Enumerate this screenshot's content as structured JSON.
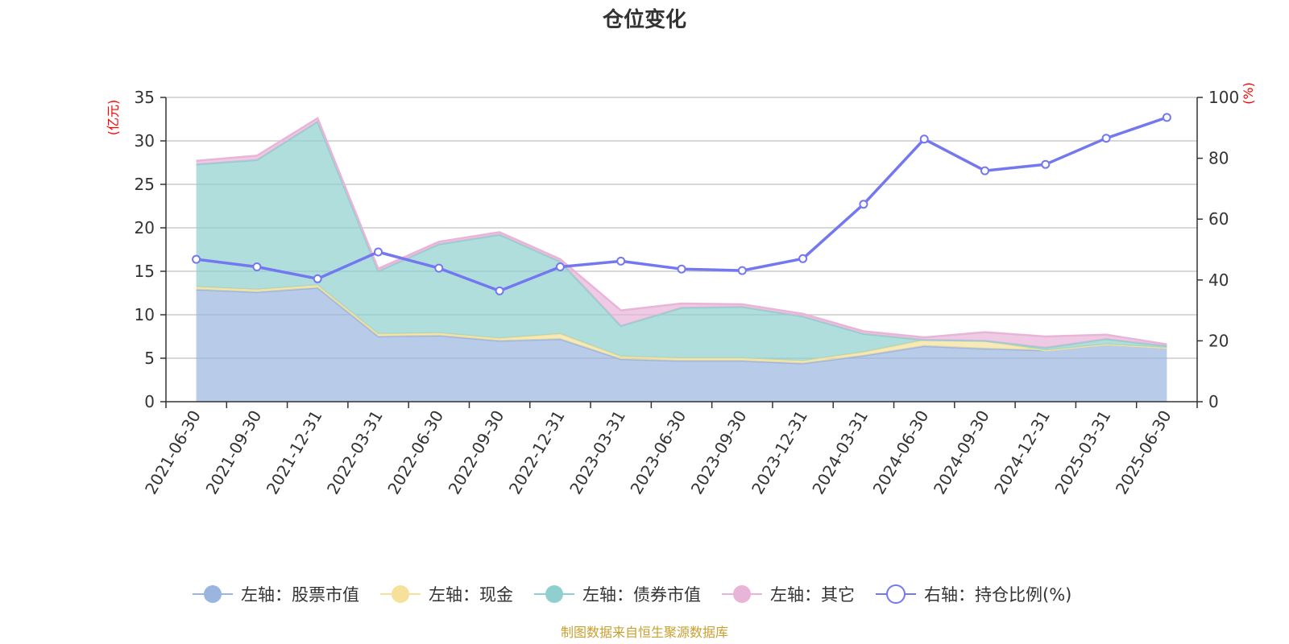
{
  "chart_data": {
    "type": "area",
    "title": "仓位变化",
    "left_axis_unit": "(亿元)",
    "right_axis_unit": "(%)",
    "left_ylim": [
      0,
      35
    ],
    "left_ticks": [
      0,
      5,
      10,
      15,
      20,
      25,
      30,
      35
    ],
    "right_ylim": [
      0,
      100
    ],
    "right_ticks": [
      0,
      20,
      40,
      60,
      80,
      100
    ],
    "grid": true,
    "legend_position": "bottom",
    "categories": [
      "2021-06-30",
      "2021-09-30",
      "2021-12-31",
      "2022-03-31",
      "2022-06-30",
      "2022-09-30",
      "2022-12-31",
      "2023-03-31",
      "2023-06-30",
      "2023-09-30",
      "2023-12-31",
      "2024-03-31",
      "2024-06-30",
      "2024-09-30",
      "2024-12-31",
      "2025-03-31",
      "2025-06-30"
    ],
    "series": [
      {
        "name": "左轴：股票市值",
        "axis": "left",
        "kind": "stacked-area",
        "color": "#9ab5e0",
        "values": [
          12.9,
          12.6,
          13.1,
          7.5,
          7.6,
          7.0,
          7.2,
          4.9,
          4.7,
          4.7,
          4.4,
          5.3,
          6.4,
          6.1,
          5.9,
          6.6,
          6.2
        ]
      },
      {
        "name": "左轴：现金",
        "axis": "left",
        "kind": "stacked-area",
        "color": "#f5e19a",
        "values": [
          0.3,
          0.3,
          0.3,
          0.3,
          0.3,
          0.3,
          0.6,
          0.3,
          0.3,
          0.3,
          0.3,
          0.4,
          0.7,
          0.9,
          0.0,
          0.0,
          0.0
        ]
      },
      {
        "name": "左轴：债券市值",
        "axis": "left",
        "kind": "stacked-area",
        "color": "#8fd0ce",
        "values": [
          14.1,
          14.9,
          18.8,
          7.2,
          10.2,
          11.9,
          8.3,
          3.5,
          5.8,
          5.9,
          5.1,
          2.1,
          0.0,
          0.0,
          0.3,
          0.6,
          0.2
        ]
      },
      {
        "name": "左轴：其它",
        "axis": "left",
        "kind": "stacked-area",
        "color": "#e8b4d8",
        "values": [
          0.4,
          0.5,
          0.4,
          0.3,
          0.3,
          0.3,
          0.3,
          1.8,
          0.5,
          0.3,
          0.3,
          0.3,
          0.3,
          1.0,
          1.3,
          0.5,
          0.2
        ]
      },
      {
        "name": "右轴：持仓比例(%)",
        "axis": "right",
        "kind": "line",
        "color": "#7478f0",
        "values": [
          46.8,
          44.3,
          40.4,
          49.2,
          43.9,
          36.4,
          44.3,
          46.2,
          43.6,
          43.1,
          47.0,
          64.9,
          86.3,
          75.9,
          78.0,
          86.6,
          93.4
        ]
      }
    ]
  },
  "source_note": "制图数据来自恒生聚源数据库"
}
